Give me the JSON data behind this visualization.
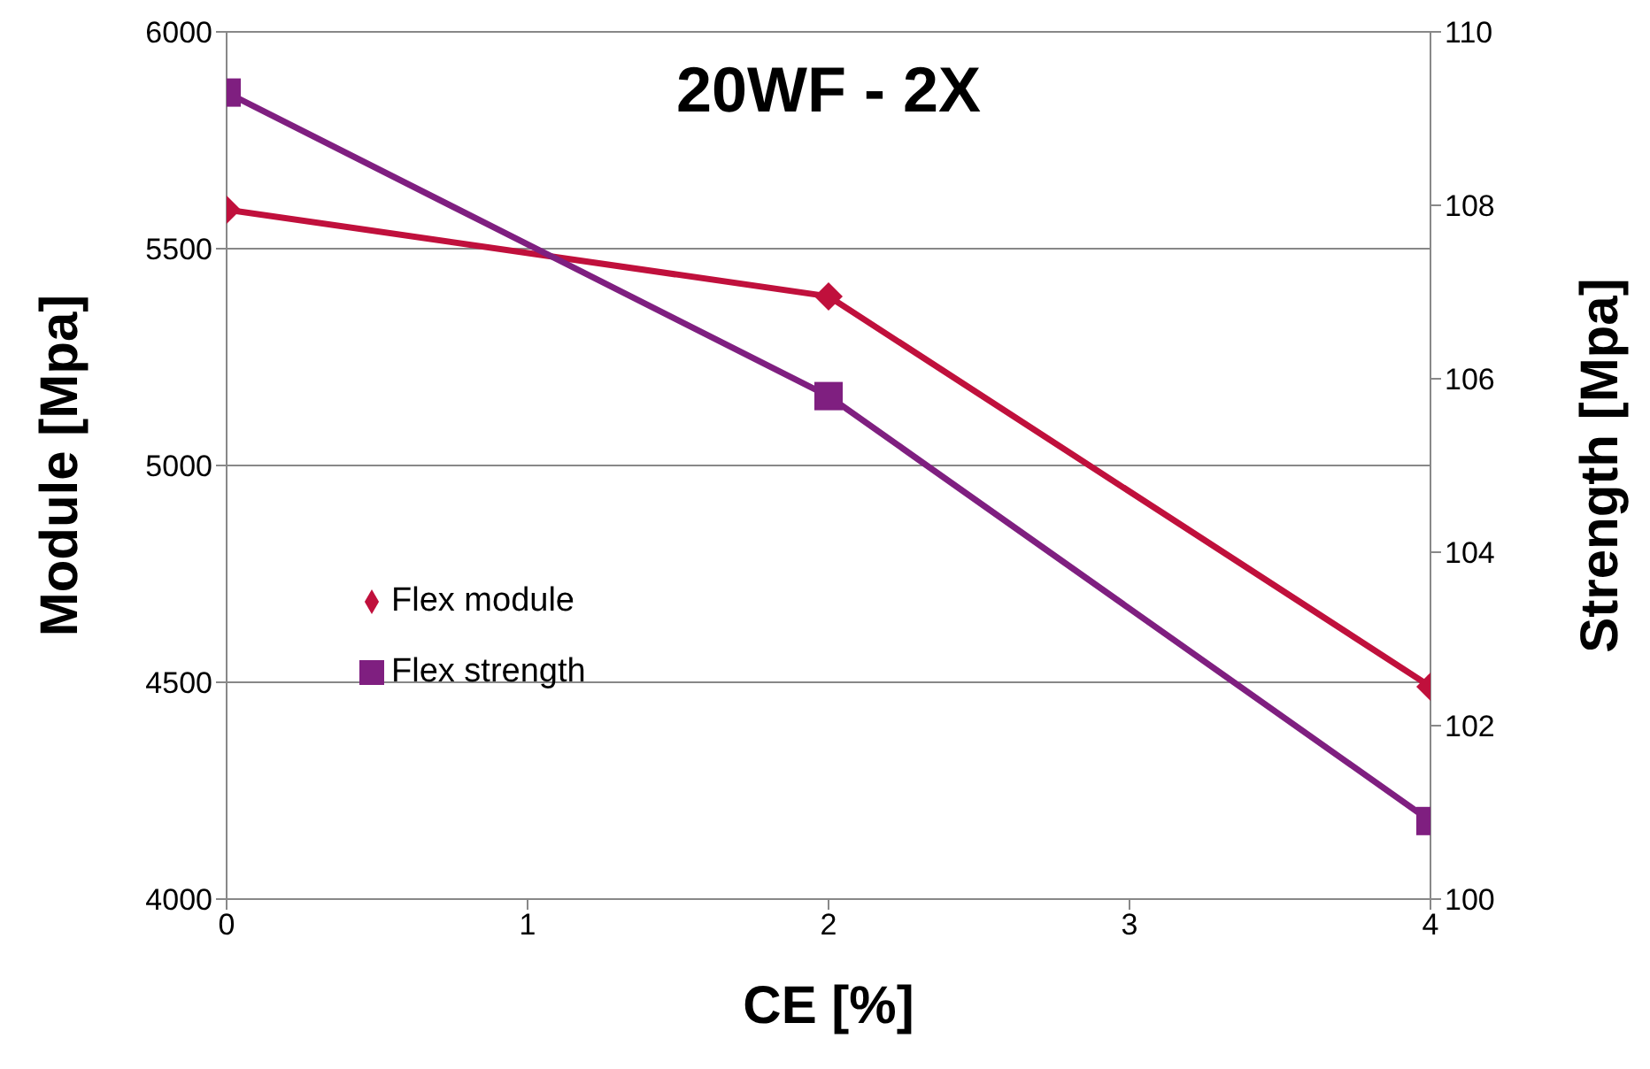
{
  "chart_data": {
    "type": "line",
    "title": "20WF - 2X",
    "xlabel": "CE [%]",
    "ylabel": "Module [Mpa]",
    "y2label": "Strength [Mpa]",
    "x": [
      0,
      2,
      4
    ],
    "series": [
      {
        "name": "Flex module",
        "color": "#c0103c",
        "marker": "diamond",
        "values": [
          5590,
          5390,
          4490
        ]
      },
      {
        "name": "Flex strength",
        "color": "#7f1f80",
        "marker": "square",
        "axis": "y2",
        "values": [
          109.3,
          105.8,
          100.9
        ]
      }
    ],
    "xlim": [
      0,
      4
    ],
    "xticks": [
      0,
      1,
      2,
      3,
      4
    ],
    "ylim": [
      4000,
      6000
    ],
    "yticks": [
      4000,
      4500,
      5000,
      5500,
      6000
    ],
    "y2lim": [
      100,
      110
    ],
    "y2ticks": [
      100,
      102,
      104,
      106,
      108,
      110
    ],
    "grid": "y",
    "legend": "left",
    "line_style": "solid"
  }
}
